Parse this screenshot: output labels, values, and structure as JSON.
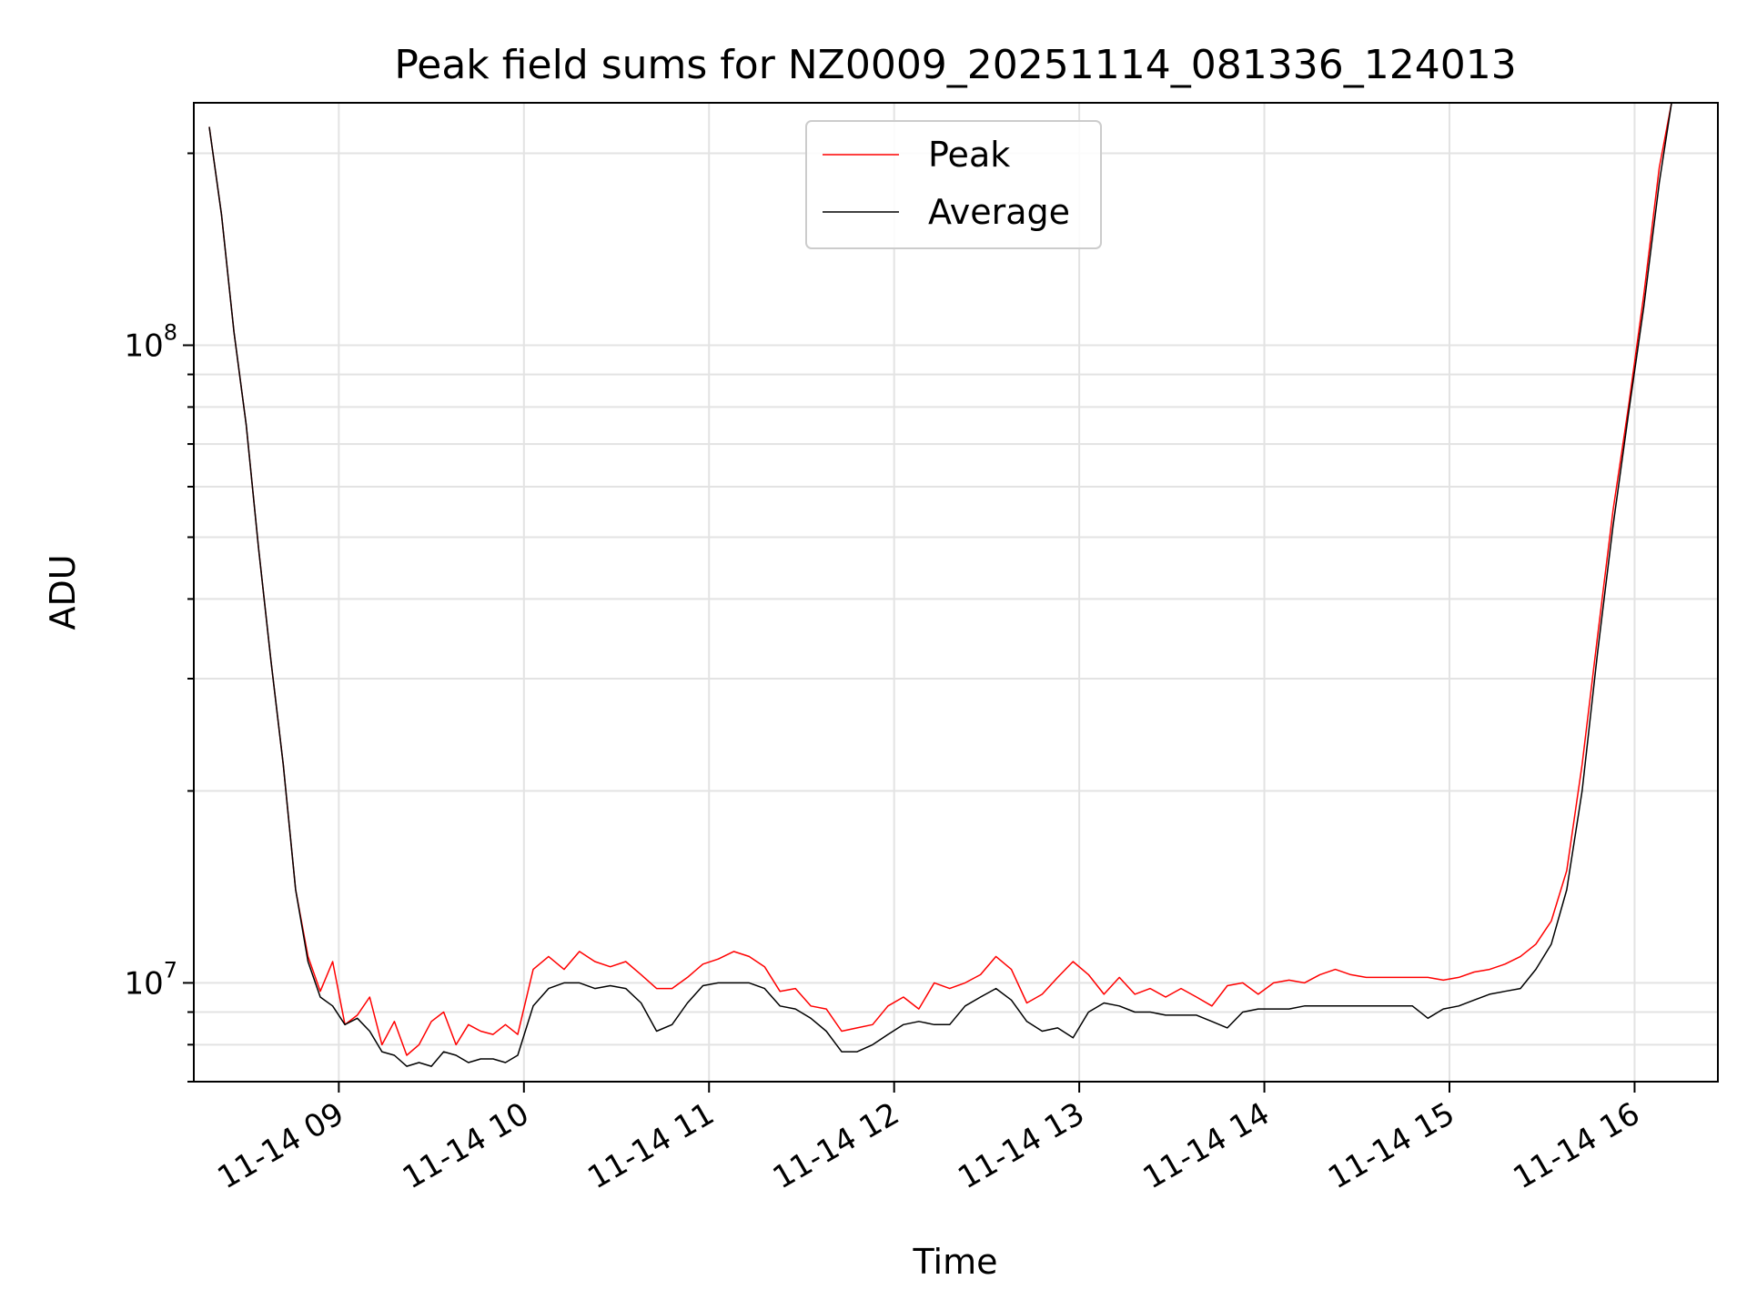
{
  "chart_data": {
    "type": "line",
    "title": "Peak field sums for NZ0009_20251114_081336_124013",
    "xlabel": "Time",
    "ylabel": "ADU",
    "yscale": "log",
    "ylim": [
      7000000,
      240000000
    ],
    "xlim": [
      "2025-11-14 08:13",
      "2025-11-14 16:27"
    ],
    "grid": true,
    "legend_position": "top-center",
    "x_ticks": [
      "11-14 09",
      "11-14 10",
      "11-14 11",
      "11-14 12",
      "11-14 13",
      "11-14 14",
      "11-14 15",
      "11-14 16"
    ],
    "x_tick_times": [
      "2025-11-14 09:00",
      "2025-11-14 10:00",
      "2025-11-14 11:00",
      "2025-11-14 12:00",
      "2025-11-14 13:00",
      "2025-11-14 14:00",
      "2025-11-14 15:00",
      "2025-11-14 16:00"
    ],
    "y_ticks": [
      {
        "base": "10",
        "exp": "7",
        "value": 10000000
      },
      {
        "base": "10",
        "exp": "8",
        "value": 100000000
      }
    ],
    "series": [
      {
        "name": "Peak",
        "color": "#ff0000",
        "x": [
          "2025-11-14 08:18",
          "2025-11-14 08:22",
          "2025-11-14 08:26",
          "2025-11-14 08:30",
          "2025-11-14 08:34",
          "2025-11-14 08:38",
          "2025-11-14 08:42",
          "2025-11-14 08:46",
          "2025-11-14 08:50",
          "2025-11-14 08:54",
          "2025-11-14 08:58",
          "2025-11-14 09:02",
          "2025-11-14 09:06",
          "2025-11-14 09:10",
          "2025-11-14 09:14",
          "2025-11-14 09:18",
          "2025-11-14 09:22",
          "2025-11-14 09:26",
          "2025-11-14 09:30",
          "2025-11-14 09:34",
          "2025-11-14 09:38",
          "2025-11-14 09:42",
          "2025-11-14 09:46",
          "2025-11-14 09:50",
          "2025-11-14 09:54",
          "2025-11-14 09:58",
          "2025-11-14 10:03",
          "2025-11-14 10:08",
          "2025-11-14 10:13",
          "2025-11-14 10:18",
          "2025-11-14 10:23",
          "2025-11-14 10:28",
          "2025-11-14 10:33",
          "2025-11-14 10:38",
          "2025-11-14 10:43",
          "2025-11-14 10:48",
          "2025-11-14 10:53",
          "2025-11-14 10:58",
          "2025-11-14 11:03",
          "2025-11-14 11:08",
          "2025-11-14 11:13",
          "2025-11-14 11:18",
          "2025-11-14 11:23",
          "2025-11-14 11:28",
          "2025-11-14 11:33",
          "2025-11-14 11:38",
          "2025-11-14 11:43",
          "2025-11-14 11:48",
          "2025-11-14 11:53",
          "2025-11-14 11:58",
          "2025-11-14 12:03",
          "2025-11-14 12:08",
          "2025-11-14 12:13",
          "2025-11-14 12:18",
          "2025-11-14 12:23",
          "2025-11-14 12:28",
          "2025-11-14 12:33",
          "2025-11-14 12:38",
          "2025-11-14 12:43",
          "2025-11-14 12:48",
          "2025-11-14 12:53",
          "2025-11-14 12:58",
          "2025-11-14 13:03",
          "2025-11-14 13:08",
          "2025-11-14 13:13",
          "2025-11-14 13:18",
          "2025-11-14 13:23",
          "2025-11-14 13:28",
          "2025-11-14 13:33",
          "2025-11-14 13:38",
          "2025-11-14 13:43",
          "2025-11-14 13:48",
          "2025-11-14 13:53",
          "2025-11-14 13:58",
          "2025-11-14 14:03",
          "2025-11-14 14:08",
          "2025-11-14 14:13",
          "2025-11-14 14:18",
          "2025-11-14 14:23",
          "2025-11-14 14:28",
          "2025-11-14 14:33",
          "2025-11-14 14:38",
          "2025-11-14 14:43",
          "2025-11-14 14:48",
          "2025-11-14 14:53",
          "2025-11-14 14:58",
          "2025-11-14 15:03",
          "2025-11-14 15:08",
          "2025-11-14 15:13",
          "2025-11-14 15:18",
          "2025-11-14 15:23",
          "2025-11-14 15:28",
          "2025-11-14 15:33",
          "2025-11-14 15:38",
          "2025-11-14 15:43",
          "2025-11-14 15:48",
          "2025-11-14 15:53",
          "2025-11-14 15:58",
          "2025-11-14 16:03",
          "2025-11-14 16:08",
          "2025-11-14 16:12"
        ],
        "y": [
          220000000,
          160000000,
          105000000,
          75000000,
          48000000,
          32000000,
          22000000,
          14000000,
          11000000,
          9700000,
          10800000,
          8600000,
          8900000,
          9500000,
          8000000,
          8700000,
          7700000,
          8000000,
          8700000,
          9000000,
          8000000,
          8600000,
          8400000,
          8300000,
          8600000,
          8300000,
          10500000,
          11000000,
          10500000,
          11200000,
          10800000,
          10600000,
          10800000,
          10300000,
          9800000,
          9800000,
          10200000,
          10700000,
          10900000,
          11200000,
          11000000,
          10600000,
          9700000,
          9800000,
          9200000,
          9100000,
          8400000,
          8500000,
          8600000,
          9200000,
          9500000,
          9100000,
          10000000,
          9800000,
          10000000,
          10300000,
          11000000,
          10500000,
          9300000,
          9600000,
          10200000,
          10800000,
          10300000,
          9600000,
          10200000,
          9600000,
          9800000,
          9500000,
          9800000,
          9500000,
          9200000,
          9900000,
          10000000,
          9600000,
          10000000,
          10100000,
          10000000,
          10300000,
          10500000,
          10300000,
          10200000,
          10200000,
          10200000,
          10200000,
          10200000,
          10100000,
          10200000,
          10400000,
          10500000,
          10700000,
          11000000,
          11500000,
          12500000,
          15000000,
          22000000,
          35000000,
          55000000,
          80000000,
          120000000,
          190000000,
          240000000
        ]
      },
      {
        "name": "Average",
        "color": "#000000",
        "x": [
          "2025-11-14 08:18",
          "2025-11-14 08:22",
          "2025-11-14 08:26",
          "2025-11-14 08:30",
          "2025-11-14 08:34",
          "2025-11-14 08:38",
          "2025-11-14 08:42",
          "2025-11-14 08:46",
          "2025-11-14 08:50",
          "2025-11-14 08:54",
          "2025-11-14 08:58",
          "2025-11-14 09:02",
          "2025-11-14 09:06",
          "2025-11-14 09:10",
          "2025-11-14 09:14",
          "2025-11-14 09:18",
          "2025-11-14 09:22",
          "2025-11-14 09:26",
          "2025-11-14 09:30",
          "2025-11-14 09:34",
          "2025-11-14 09:38",
          "2025-11-14 09:42",
          "2025-11-14 09:46",
          "2025-11-14 09:50",
          "2025-11-14 09:54",
          "2025-11-14 09:58",
          "2025-11-14 10:03",
          "2025-11-14 10:08",
          "2025-11-14 10:13",
          "2025-11-14 10:18",
          "2025-11-14 10:23",
          "2025-11-14 10:28",
          "2025-11-14 10:33",
          "2025-11-14 10:38",
          "2025-11-14 10:43",
          "2025-11-14 10:48",
          "2025-11-14 10:53",
          "2025-11-14 10:58",
          "2025-11-14 11:03",
          "2025-11-14 11:08",
          "2025-11-14 11:13",
          "2025-11-14 11:18",
          "2025-11-14 11:23",
          "2025-11-14 11:28",
          "2025-11-14 11:33",
          "2025-11-14 11:38",
          "2025-11-14 11:43",
          "2025-11-14 11:48",
          "2025-11-14 11:53",
          "2025-11-14 11:58",
          "2025-11-14 12:03",
          "2025-11-14 12:08",
          "2025-11-14 12:13",
          "2025-11-14 12:18",
          "2025-11-14 12:23",
          "2025-11-14 12:28",
          "2025-11-14 12:33",
          "2025-11-14 12:38",
          "2025-11-14 12:43",
          "2025-11-14 12:48",
          "2025-11-14 12:53",
          "2025-11-14 12:58",
          "2025-11-14 13:03",
          "2025-11-14 13:08",
          "2025-11-14 13:13",
          "2025-11-14 13:18",
          "2025-11-14 13:23",
          "2025-11-14 13:28",
          "2025-11-14 13:33",
          "2025-11-14 13:38",
          "2025-11-14 13:43",
          "2025-11-14 13:48",
          "2025-11-14 13:53",
          "2025-11-14 13:58",
          "2025-11-14 14:03",
          "2025-11-14 14:08",
          "2025-11-14 14:13",
          "2025-11-14 14:18",
          "2025-11-14 14:23",
          "2025-11-14 14:28",
          "2025-11-14 14:33",
          "2025-11-14 14:38",
          "2025-11-14 14:43",
          "2025-11-14 14:48",
          "2025-11-14 14:53",
          "2025-11-14 14:58",
          "2025-11-14 15:03",
          "2025-11-14 15:08",
          "2025-11-14 15:13",
          "2025-11-14 15:18",
          "2025-11-14 15:23",
          "2025-11-14 15:28",
          "2025-11-14 15:33",
          "2025-11-14 15:38",
          "2025-11-14 15:43",
          "2025-11-14 15:48",
          "2025-11-14 15:53",
          "2025-11-14 15:58",
          "2025-11-14 16:03",
          "2025-11-14 16:08",
          "2025-11-14 16:12"
        ],
        "y": [
          220000000,
          160000000,
          105000000,
          75000000,
          48000000,
          32000000,
          22000000,
          14000000,
          10800000,
          9500000,
          9200000,
          8600000,
          8800000,
          8400000,
          7800000,
          7700000,
          7400000,
          7500000,
          7400000,
          7800000,
          7700000,
          7500000,
          7600000,
          7600000,
          7500000,
          7700000,
          9200000,
          9800000,
          10000000,
          10000000,
          9800000,
          9900000,
          9800000,
          9300000,
          8400000,
          8600000,
          9300000,
          9900000,
          10000000,
          10000000,
          10000000,
          9800000,
          9200000,
          9100000,
          8800000,
          8400000,
          7800000,
          7800000,
          8000000,
          8300000,
          8600000,
          8700000,
          8600000,
          8600000,
          9200000,
          9500000,
          9800000,
          9400000,
          8700000,
          8400000,
          8500000,
          8200000,
          9000000,
          9300000,
          9200000,
          9000000,
          9000000,
          8900000,
          8900000,
          8900000,
          8700000,
          8500000,
          9000000,
          9100000,
          9100000,
          9100000,
          9200000,
          9200000,
          9200000,
          9200000,
          9200000,
          9200000,
          9200000,
          9200000,
          8800000,
          9100000,
          9200000,
          9400000,
          9600000,
          9700000,
          9800000,
          10500000,
          11500000,
          14000000,
          20000000,
          33000000,
          52000000,
          78000000,
          115000000,
          180000000,
          240000000
        ]
      }
    ]
  }
}
